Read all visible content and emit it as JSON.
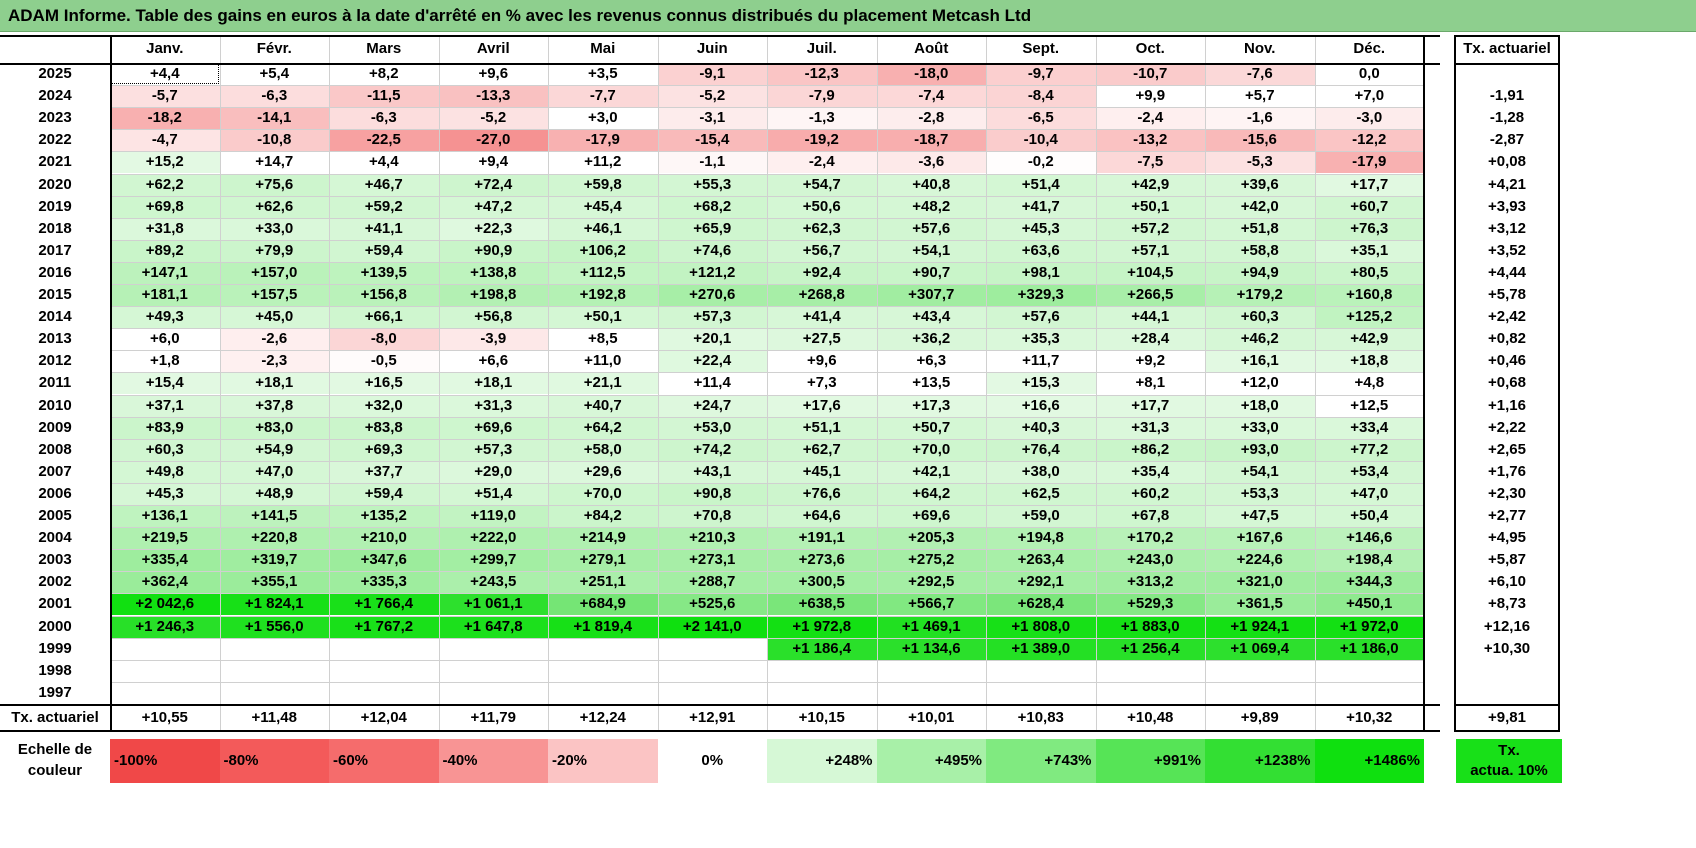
{
  "title": "ADAM Informe. Table des gains en euros à la date d'arrêté en % avec les revenus connus distribués du placement Metcash Ltd",
  "months": [
    "Janv.",
    "Févr.",
    "Mars",
    "Avril",
    "Mai",
    "Juin",
    "Juil.",
    "Août",
    "Sept.",
    "Oct.",
    "Nov.",
    "Déc."
  ],
  "rate_header": "Tx. actuariel",
  "rows": [
    {
      "year": "2025",
      "values": [
        "+4,4",
        "+5,4",
        "+8,2",
        "+9,6",
        "+3,5",
        "-9,1",
        "-12,3",
        "-18,0",
        "-9,7",
        "-10,7",
        "-7,6",
        "0,0"
      ],
      "rate": ""
    },
    {
      "year": "2024",
      "values": [
        "-5,7",
        "-6,3",
        "-11,5",
        "-13,3",
        "-7,7",
        "-5,2",
        "-7,9",
        "-7,4",
        "-8,4",
        "+9,9",
        "+5,7",
        "+7,0"
      ],
      "rate": "-1,91"
    },
    {
      "year": "2023",
      "values": [
        "-18,2",
        "-14,1",
        "-6,3",
        "-5,2",
        "+3,0",
        "-3,1",
        "-1,3",
        "-2,8",
        "-6,5",
        "-2,4",
        "-1,6",
        "-3,0"
      ],
      "rate": "-1,28"
    },
    {
      "year": "2022",
      "values": [
        "-4,7",
        "-10,8",
        "-22,5",
        "-27,0",
        "-17,9",
        "-15,4",
        "-19,2",
        "-18,7",
        "-10,4",
        "-13,2",
        "-15,6",
        "-12,2"
      ],
      "rate": "-2,87"
    },
    {
      "year": "2021",
      "values": [
        "+15,2",
        "+14,7",
        "+4,4",
        "+9,4",
        "+11,2",
        "-1,1",
        "-2,4",
        "-3,6",
        "-0,2",
        "-7,5",
        "-5,3",
        "-17,9"
      ],
      "rate": "+0,08"
    },
    {
      "year": "2020",
      "values": [
        "+62,2",
        "+75,6",
        "+46,7",
        "+72,4",
        "+59,8",
        "+55,3",
        "+54,7",
        "+40,8",
        "+51,4",
        "+42,9",
        "+39,6",
        "+17,7"
      ],
      "rate": "+4,21"
    },
    {
      "year": "2019",
      "values": [
        "+69,8",
        "+62,6",
        "+59,2",
        "+47,2",
        "+45,4",
        "+68,2",
        "+50,6",
        "+48,2",
        "+41,7",
        "+50,1",
        "+42,0",
        "+60,7"
      ],
      "rate": "+3,93"
    },
    {
      "year": "2018",
      "values": [
        "+31,8",
        "+33,0",
        "+41,1",
        "+22,3",
        "+46,1",
        "+65,9",
        "+62,3",
        "+57,6",
        "+45,3",
        "+57,2",
        "+51,8",
        "+76,3"
      ],
      "rate": "+3,12"
    },
    {
      "year": "2017",
      "values": [
        "+89,2",
        "+79,9",
        "+59,4",
        "+90,9",
        "+106,2",
        "+74,6",
        "+56,7",
        "+54,1",
        "+63,6",
        "+57,1",
        "+58,8",
        "+35,1"
      ],
      "rate": "+3,52"
    },
    {
      "year": "2016",
      "values": [
        "+147,1",
        "+157,0",
        "+139,5",
        "+138,8",
        "+112,5",
        "+121,2",
        "+92,4",
        "+90,7",
        "+98,1",
        "+104,5",
        "+94,9",
        "+80,5"
      ],
      "rate": "+4,44"
    },
    {
      "year": "2015",
      "values": [
        "+181,1",
        "+157,5",
        "+156,8",
        "+198,8",
        "+192,8",
        "+270,6",
        "+268,8",
        "+307,7",
        "+329,3",
        "+266,5",
        "+179,2",
        "+160,8"
      ],
      "rate": "+5,78"
    },
    {
      "year": "2014",
      "values": [
        "+49,3",
        "+45,0",
        "+66,1",
        "+56,8",
        "+50,1",
        "+57,3",
        "+41,4",
        "+43,4",
        "+57,6",
        "+44,1",
        "+60,3",
        "+125,2"
      ],
      "rate": "+2,42"
    },
    {
      "year": "2013",
      "values": [
        "+6,0",
        "-2,6",
        "-8,0",
        "-3,9",
        "+8,5",
        "+20,1",
        "+27,5",
        "+36,2",
        "+35,3",
        "+28,4",
        "+46,2",
        "+42,9"
      ],
      "rate": "+0,82"
    },
    {
      "year": "2012",
      "values": [
        "+1,8",
        "-2,3",
        "-0,5",
        "+6,6",
        "+11,0",
        "+22,4",
        "+9,6",
        "+6,3",
        "+11,7",
        "+9,2",
        "+16,1",
        "+18,8"
      ],
      "rate": "+0,46"
    },
    {
      "year": "2011",
      "values": [
        "+15,4",
        "+18,1",
        "+16,5",
        "+18,1",
        "+21,1",
        "+11,4",
        "+7,3",
        "+13,5",
        "+15,3",
        "+8,1",
        "+12,0",
        "+4,8"
      ],
      "rate": "+0,68"
    },
    {
      "year": "2010",
      "values": [
        "+37,1",
        "+37,8",
        "+32,0",
        "+31,3",
        "+40,7",
        "+24,7",
        "+17,6",
        "+17,3",
        "+16,6",
        "+17,7",
        "+18,0",
        "+12,5"
      ],
      "rate": "+1,16"
    },
    {
      "year": "2009",
      "values": [
        "+83,9",
        "+83,0",
        "+83,8",
        "+69,6",
        "+64,2",
        "+53,0",
        "+51,1",
        "+50,7",
        "+40,3",
        "+31,3",
        "+33,0",
        "+33,4"
      ],
      "rate": "+2,22"
    },
    {
      "year": "2008",
      "values": [
        "+60,3",
        "+54,9",
        "+69,3",
        "+57,3",
        "+58,0",
        "+74,2",
        "+62,7",
        "+70,0",
        "+76,4",
        "+86,2",
        "+93,0",
        "+77,2"
      ],
      "rate": "+2,65"
    },
    {
      "year": "2007",
      "values": [
        "+49,8",
        "+47,0",
        "+37,7",
        "+29,0",
        "+29,6",
        "+43,1",
        "+45,1",
        "+42,1",
        "+38,0",
        "+35,4",
        "+54,1",
        "+53,4"
      ],
      "rate": "+1,76"
    },
    {
      "year": "2006",
      "values": [
        "+45,3",
        "+48,9",
        "+59,4",
        "+51,4",
        "+70,0",
        "+90,8",
        "+76,6",
        "+64,2",
        "+62,5",
        "+60,2",
        "+53,3",
        "+47,0"
      ],
      "rate": "+2,30"
    },
    {
      "year": "2005",
      "values": [
        "+136,1",
        "+141,5",
        "+135,2",
        "+119,0",
        "+84,2",
        "+70,8",
        "+64,6",
        "+69,6",
        "+59,0",
        "+67,8",
        "+47,5",
        "+50,4"
      ],
      "rate": "+2,77"
    },
    {
      "year": "2004",
      "values": [
        "+219,5",
        "+220,8",
        "+210,0",
        "+222,0",
        "+214,9",
        "+210,3",
        "+191,1",
        "+205,3",
        "+194,8",
        "+170,2",
        "+167,6",
        "+146,6"
      ],
      "rate": "+4,95"
    },
    {
      "year": "2003",
      "values": [
        "+335,4",
        "+319,7",
        "+347,6",
        "+299,7",
        "+279,1",
        "+273,1",
        "+273,6",
        "+275,2",
        "+263,4",
        "+243,0",
        "+224,6",
        "+198,4"
      ],
      "rate": "+5,87"
    },
    {
      "year": "2002",
      "values": [
        "+362,4",
        "+355,1",
        "+335,3",
        "+243,5",
        "+251,1",
        "+288,7",
        "+300,5",
        "+292,5",
        "+292,1",
        "+313,2",
        "+321,0",
        "+344,3"
      ],
      "rate": "+6,10"
    },
    {
      "year": "2001",
      "values": [
        "+2 042,6",
        "+1 824,1",
        "+1 766,4",
        "+1 061,1",
        "+684,9",
        "+525,6",
        "+638,5",
        "+566,7",
        "+628,4",
        "+529,3",
        "+361,5",
        "+450,1"
      ],
      "rate": "+8,73"
    },
    {
      "year": "2000",
      "values": [
        "+1 246,3",
        "+1 556,0",
        "+1 767,2",
        "+1 647,8",
        "+1 819,4",
        "+2 141,0",
        "+1 972,8",
        "+1 469,1",
        "+1 808,0",
        "+1 883,0",
        "+1 924,1",
        "+1 972,0"
      ],
      "rate": "+12,16"
    },
    {
      "year": "1999",
      "values": [
        "",
        "",
        "",
        "",
        "",
        "",
        "+1 186,4",
        "+1 134,6",
        "+1 389,0",
        "+1 256,4",
        "+1 069,4",
        "+1 186,0"
      ],
      "rate": "+10,30"
    },
    {
      "year": "1998",
      "values": [
        "",
        "",
        "",
        "",
        "",
        "",
        "",
        "",
        "",
        "",
        "",
        ""
      ],
      "rate": ""
    },
    {
      "year": "1997",
      "values": [
        "",
        "",
        "",
        "",
        "",
        "",
        "",
        "",
        "",
        "",
        "",
        ""
      ],
      "rate": ""
    }
  ],
  "footer": {
    "label": "Tx. actuariel",
    "values": [
      "+10,55",
      "+11,48",
      "+12,04",
      "+11,79",
      "+12,24",
      "+12,91",
      "+10,15",
      "+10,01",
      "+10,83",
      "+10,48",
      "+9,89",
      "+10,32"
    ],
    "rate": "+9,81"
  },
  "scale": {
    "label_line1": "Echelle de",
    "label_line2": "couleur",
    "steps": [
      {
        "label": "-100%",
        "color": "#f04848"
      },
      {
        "label": "-80%",
        "color": "#f35a5a"
      },
      {
        "label": "-60%",
        "color": "#f56c6c"
      },
      {
        "label": "-40%",
        "color": "#f89494"
      },
      {
        "label": "-20%",
        "color": "#fbc4c4"
      },
      {
        "label": "0%",
        "color": "#ffffff"
      },
      {
        "label": "+248%",
        "color": "#d6f8d6"
      },
      {
        "label": "+495%",
        "color": "#a8f0a8"
      },
      {
        "label": "+743%",
        "color": "#80ea80"
      },
      {
        "label": "+991%",
        "color": "#56e456"
      },
      {
        "label": "+1238%",
        "color": "#33df33"
      },
      {
        "label": "+1486%",
        "color": "#0fe00f"
      }
    ],
    "rate_line1": "Tx.",
    "rate_line2": "actua. 10%",
    "rate_color": "#18e018"
  },
  "colors": {
    "title_bg": "#8ecf8e",
    "neg_max": "#f04848",
    "pos_max": "#0fe00f"
  }
}
